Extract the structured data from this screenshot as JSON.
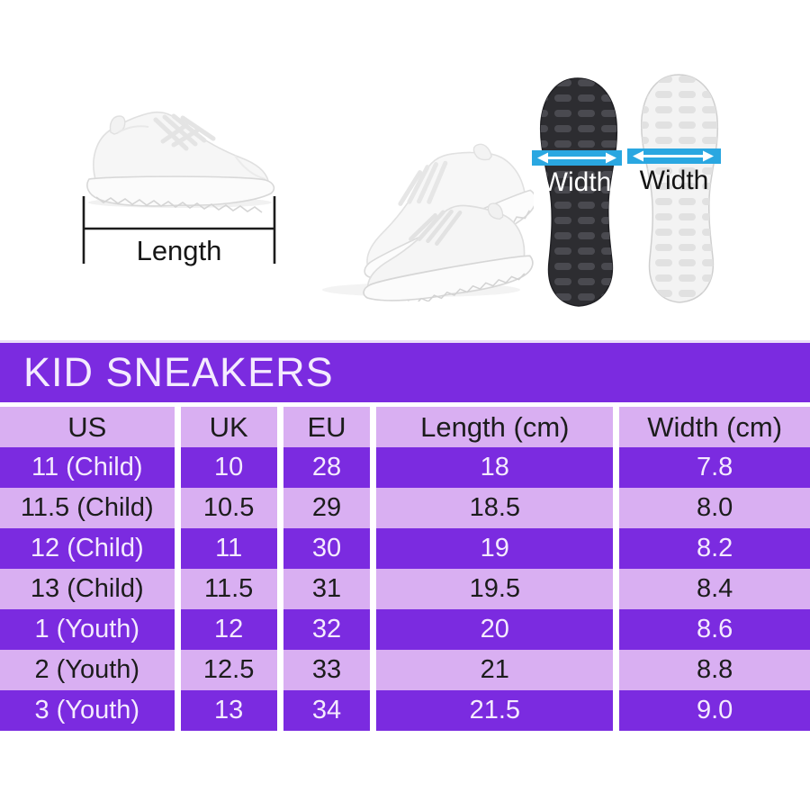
{
  "figure": {
    "length_label": "Length",
    "sole_black_width_label": "Width",
    "sole_white_width_label": "Width"
  },
  "chart_data": {
    "type": "table",
    "title": "KID SNEAKERS",
    "columns": [
      "US",
      "UK",
      "EU",
      "Length (cm)",
      "Width (cm)"
    ],
    "rows": [
      [
        "11 (Child)",
        "10",
        "28",
        "18",
        "7.8"
      ],
      [
        "11.5 (Child)",
        "10.5",
        "29",
        "18.5",
        "8.0"
      ],
      [
        "12 (Child)",
        "11",
        "30",
        "19",
        "8.2"
      ],
      [
        "13 (Child)",
        "11.5",
        "31",
        "19.5",
        "8.4"
      ],
      [
        "1 (Youth)",
        "12",
        "32",
        "20",
        "8.6"
      ],
      [
        "2 (Youth)",
        "12.5",
        "33",
        "21",
        "8.8"
      ],
      [
        "3 (Youth)",
        "13",
        "34",
        "21.5",
        "9.0"
      ]
    ],
    "row_style_pattern": "alternating dark purple (white text) / light purple (dark text), header light purple",
    "layout_hints": {
      "banner_position": "top of table, left-aligned title",
      "column_dividers": "white vertical gaps"
    }
  },
  "theme": {
    "banner_purple": "#7B2BE0",
    "row_dark": "#7B2BE0",
    "row_light": "#D9AFF2",
    "text_on_dark": "#F4EAFE",
    "text_on_light": "#1C1C1C",
    "divider_white": "#FFFFFF",
    "measure_cyan": "#2AA7E1"
  }
}
